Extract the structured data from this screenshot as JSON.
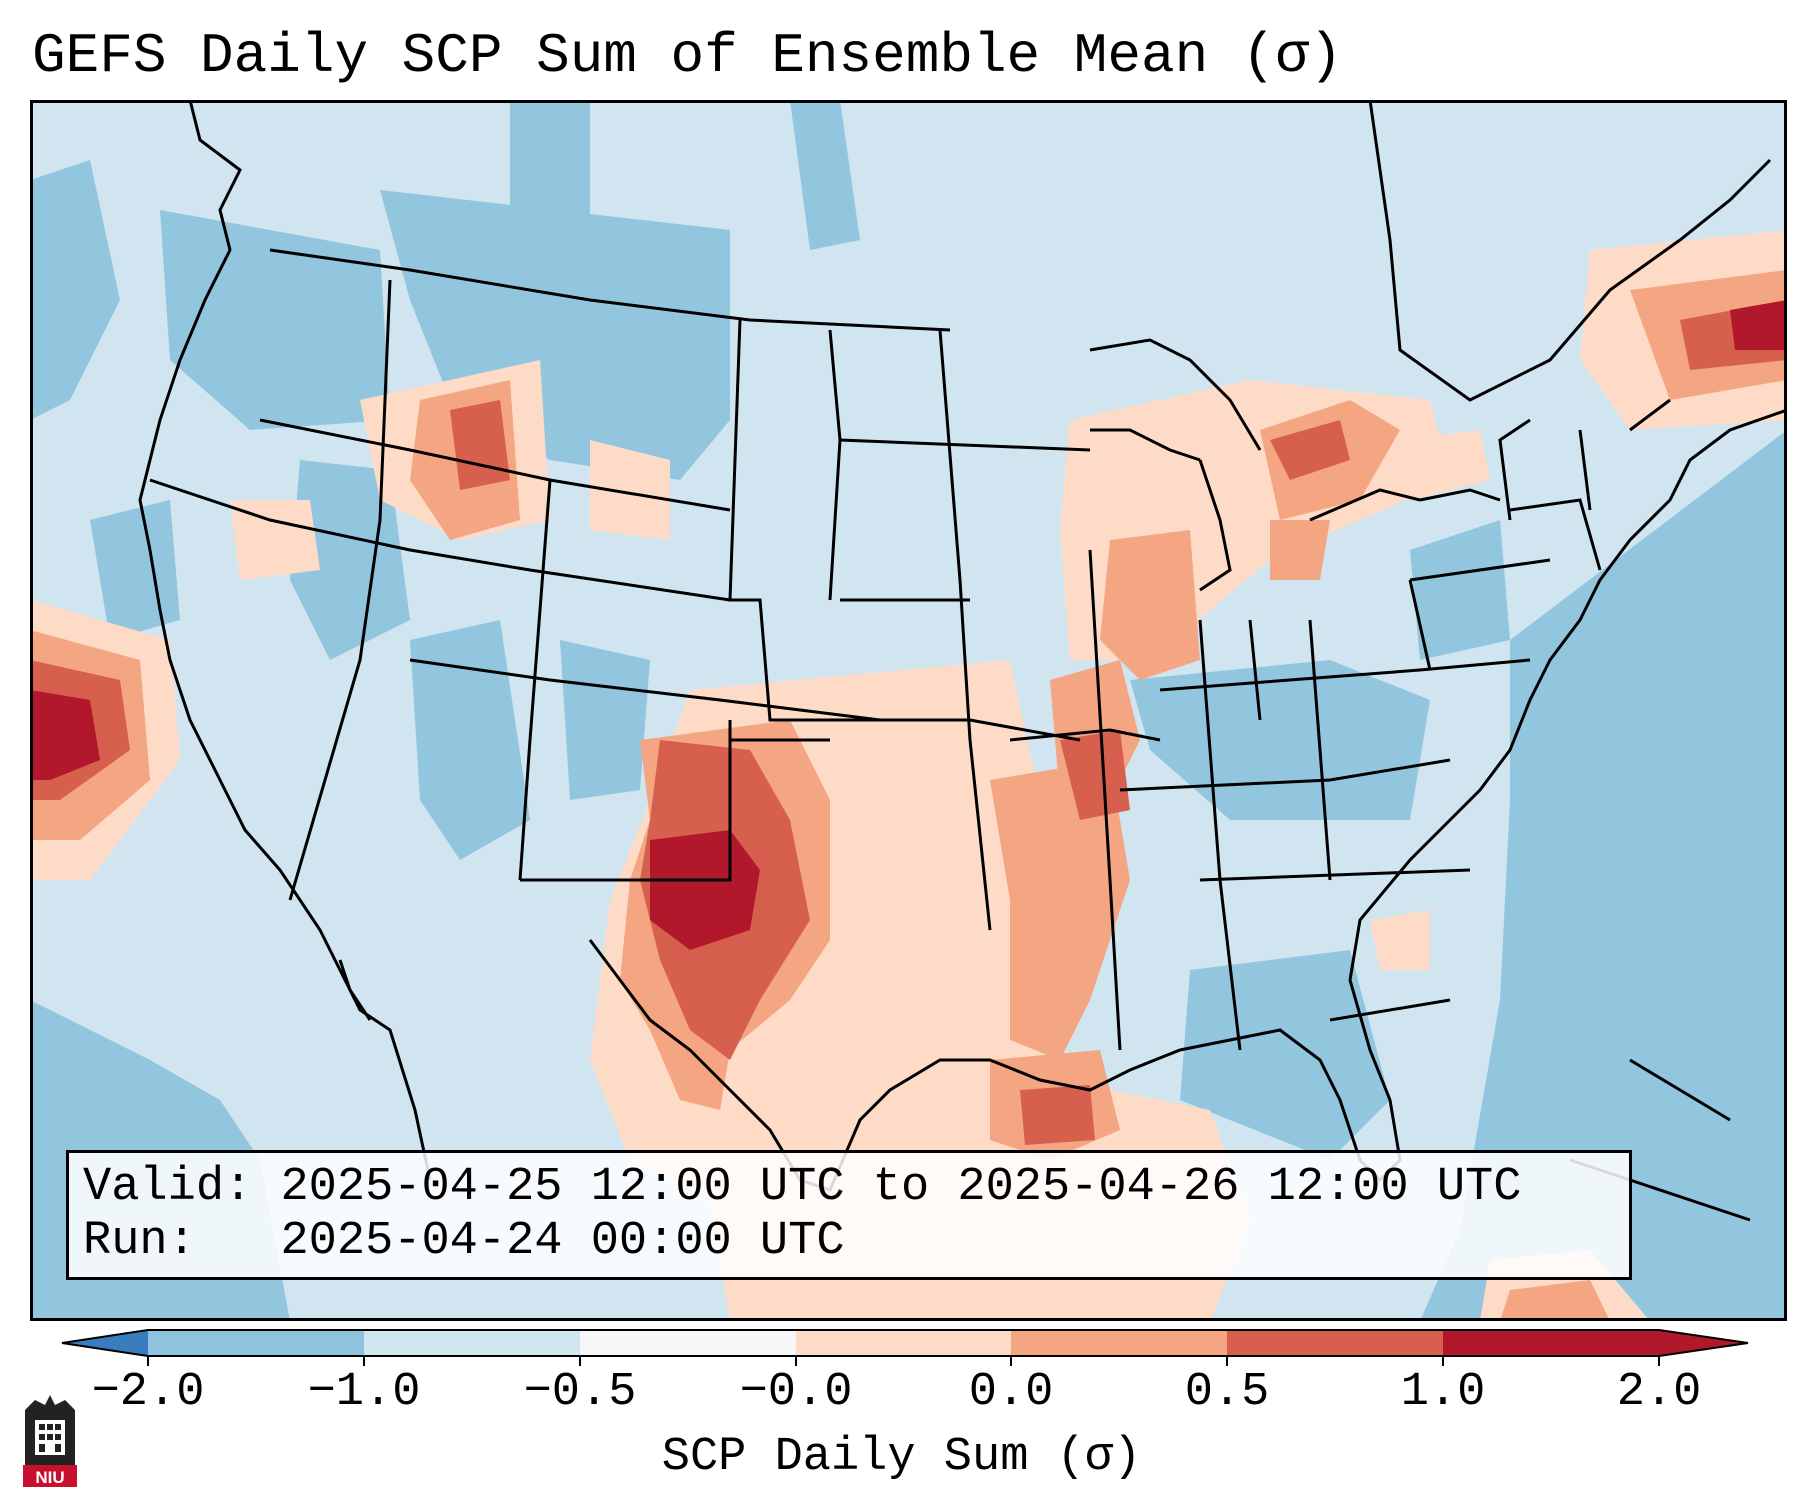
{
  "title": "GEFS Daily SCP Sum of Ensemble Mean (σ)",
  "info": {
    "valid_label": "Valid:",
    "valid_value": "2025-04-25 12:00 UTC to 2025-04-26 12:00 UTC",
    "run_label": "Run:",
    "run_value": "2025-04-24 00:00 UTC"
  },
  "colorbar": {
    "label": "SCP Daily Sum (σ)",
    "ticks": [
      "−2.0",
      "−1.0",
      "−0.5",
      "−0.0",
      "0.0",
      "0.5",
      "1.0",
      "2.0"
    ],
    "colors": [
      "#3a7dbf",
      "#8fc2de",
      "#d1e5f0",
      "#f7f7f7",
      "#fddbc7",
      "#f4a582",
      "#d6604d",
      "#b2182b"
    ]
  },
  "map": {
    "region": "CONUS",
    "anomaly_areas": [
      {
        "area": "W Texas / SE New Mexico / W Oklahoma",
        "level": 2.0
      },
      {
        "area": "Central Pacific offshore",
        "level": 2.0
      },
      {
        "area": "Gulf of Maine",
        "level": 2.0
      },
      {
        "area": "Arkansas / Mississippi Valley",
        "level": 1.0
      },
      {
        "area": "NE Idaho / SW Montana",
        "level": 1.0
      },
      {
        "area": "Lower Great Lakes / Ontario",
        "level": 1.0
      },
      {
        "area": "Louisiana coast / NW Gulf",
        "level": 1.0
      }
    ]
  },
  "logo": {
    "text": "NIU"
  }
}
